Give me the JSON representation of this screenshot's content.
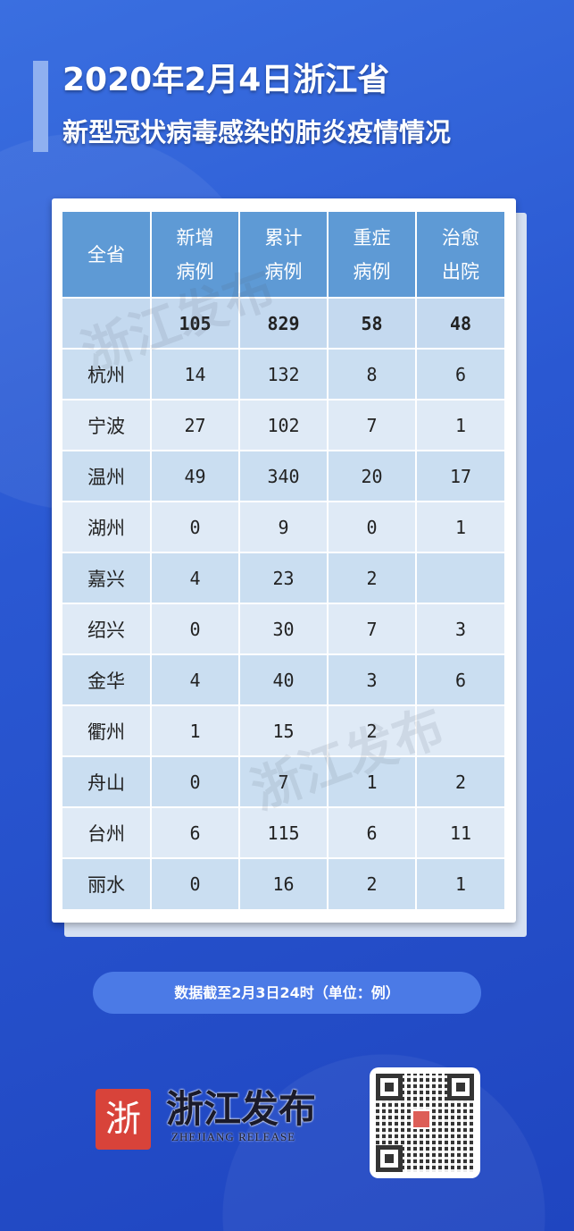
{
  "title": {
    "line1": "2020年2月4日浙江省",
    "line2": "新型冠状病毒感染的肺炎疫情情况"
  },
  "table": {
    "headers": [
      [
        "全省"
      ],
      [
        "新增",
        "病例"
      ],
      [
        "累计",
        "病例"
      ],
      [
        "重症",
        "病例"
      ],
      [
        "治愈",
        "出院"
      ]
    ],
    "total": [
      "",
      "105",
      "829",
      "58",
      "48"
    ],
    "rows": [
      [
        "杭州",
        "14",
        "132",
        "8",
        "6"
      ],
      [
        "宁波",
        "27",
        "102",
        "7",
        "1"
      ],
      [
        "温州",
        "49",
        "340",
        "20",
        "17"
      ],
      [
        "湖州",
        "0",
        "9",
        "0",
        "1"
      ],
      [
        "嘉兴",
        "4",
        "23",
        "2",
        ""
      ],
      [
        "绍兴",
        "0",
        "30",
        "7",
        "3"
      ],
      [
        "金华",
        "4",
        "40",
        "3",
        "6"
      ],
      [
        "衢州",
        "1",
        "15",
        "2",
        ""
      ],
      [
        "舟山",
        "0",
        "7",
        "1",
        "2"
      ],
      [
        "台州",
        "6",
        "115",
        "6",
        "11"
      ],
      [
        "丽水",
        "0",
        "16",
        "2",
        "1"
      ]
    ]
  },
  "watermark": "浙江发布",
  "note": "数据截至2月3日24时（单位：例）",
  "brand": {
    "name": "浙江发布",
    "english": "ZHEJIANG RELEASE",
    "logo_char": "浙"
  },
  "colors": {
    "background": "#2a58d2",
    "header": "#5e9ad5",
    "logo_red": "#d8433a"
  }
}
